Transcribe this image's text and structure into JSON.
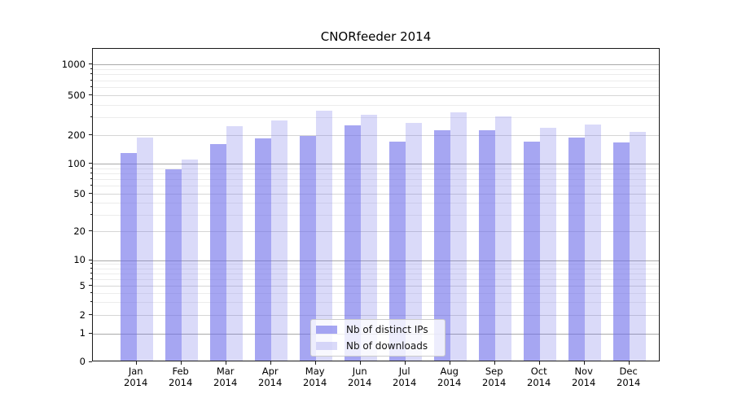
{
  "title": "CNORfeeder 2014",
  "legend": {
    "items": [
      {
        "label": "Nb of distinct IPs",
        "color": "rgba(107,107,233,0.6)"
      },
      {
        "label": "Nb of downloads",
        "color": "rgba(107,107,233,0.25)"
      }
    ]
  },
  "chart_data": {
    "type": "bar",
    "title": "CNORfeeder 2014",
    "categories": [
      "Jan",
      "Feb",
      "Mar",
      "Apr",
      "May",
      "Jun",
      "Jul",
      "Aug",
      "Sep",
      "Oct",
      "Nov",
      "Dec"
    ],
    "year_label": "2014",
    "series": [
      {
        "name": "Nb of distinct IPs",
        "color": "rgba(107,107,233,0.6)",
        "values": [
          130,
          88,
          160,
          184,
          197,
          249,
          170,
          225,
          223,
          170,
          189,
          168
        ]
      },
      {
        "name": "Nb of downloads",
        "color": "rgba(107,107,233,0.25)",
        "values": [
          188,
          111,
          244,
          281,
          352,
          318,
          265,
          336,
          310,
          238,
          257,
          216
        ]
      }
    ],
    "y_axis": {
      "scale": "log-like (symlog)",
      "ticks": [
        0,
        1,
        2,
        5,
        10,
        20,
        50,
        100,
        200,
        500,
        1000
      ],
      "decade_ticks": [
        1,
        10,
        100,
        1000
      ],
      "minor_ticks": [
        3,
        4,
        6,
        7,
        8,
        9,
        30,
        40,
        60,
        70,
        80,
        90,
        300,
        400,
        600,
        700,
        800,
        900
      ],
      "ylim": [
        0,
        1500
      ]
    },
    "x_axis": {
      "label_line2_all": "2014"
    },
    "grid": true,
    "legend_position": "lower-center inside plot"
  }
}
